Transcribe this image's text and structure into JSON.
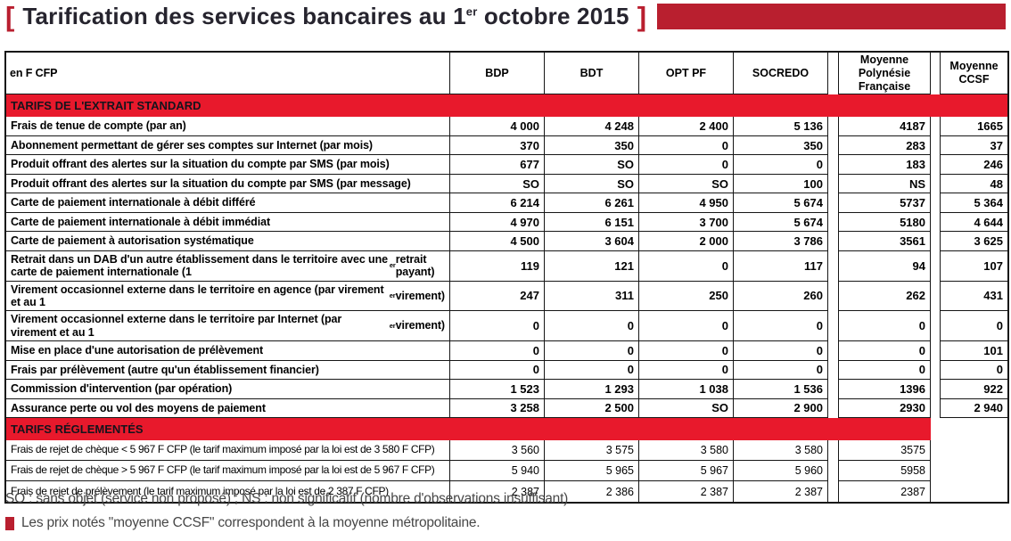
{
  "title": {
    "open_bracket": "[",
    "text": "Tarification des services bancaires au 1^{er} octobre 2015",
    "close_bracket": "]"
  },
  "colors": {
    "band_red": "#e8192c",
    "accent_dark_red": "#b91f2f",
    "border_black": "#161616",
    "title_text": "#26242e"
  },
  "table": {
    "unit_label": "en F CFP",
    "columns": [
      "BDP",
      "BDT",
      "OPT PF",
      "SOCREDO",
      "Moyenne Polynésie Française",
      "Moyenne CCSF"
    ],
    "sections": [
      {
        "header": "TARIFS DE L'EXTRAIT STANDARD",
        "full_width": true,
        "rows": [
          {
            "label": "Frais de tenue de compte (par an)",
            "values": [
              "4 000",
              "4 248",
              "2 400",
              "5 136",
              "4187",
              "1665"
            ]
          },
          {
            "label": "Abonnement permettant de gérer ses comptes sur Internet (par mois)",
            "values": [
              "370",
              "350",
              "0",
              "350",
              "283",
              "37"
            ]
          },
          {
            "label": "Produit offrant des alertes sur la situation du compte par SMS (par mois)",
            "values": [
              "677",
              "SO",
              "0",
              "0",
              "183",
              "246"
            ]
          },
          {
            "label": "Produit offrant des alertes sur la situation du compte par SMS (par message)",
            "values": [
              "SO",
              "SO",
              "SO",
              "100",
              "NS",
              "48"
            ]
          },
          {
            "label": "Carte de paiement internationale à débit différé",
            "values": [
              "6 214",
              "6 261",
              "4 950",
              "5 674",
              "5737",
              "5 364"
            ]
          },
          {
            "label": "Carte de paiement internationale à débit immédiat",
            "values": [
              "4 970",
              "6 151",
              "3 700",
              "5 674",
              "5180",
              "4 644"
            ]
          },
          {
            "label": "Carte de paiement à autorisation systématique",
            "values": [
              "4 500",
              "3 604",
              "2 000",
              "3 786",
              "3561",
              "3 625"
            ]
          },
          {
            "label": "Retrait dans un DAB d'un autre établissement dans le territoire avec une carte de paiement internationale (1^{er} retrait payant)",
            "values": [
              "119",
              "121",
              "0",
              "117",
              "94",
              "107"
            ]
          },
          {
            "label": "Virement occasionnel externe dans le territoire en agence (par virement et au 1^{er} virement)",
            "values": [
              "247",
              "311",
              "250",
              "260",
              "262",
              "431"
            ]
          },
          {
            "label": "Virement occasionnel externe dans le territoire par Internet (par virement et au 1^{er} virement)",
            "values": [
              "0",
              "0",
              "0",
              "0",
              "0",
              "0"
            ]
          },
          {
            "label": "Mise en place d'une autorisation de prélèvement",
            "values": [
              "0",
              "0",
              "0",
              "0",
              "0",
              "101"
            ]
          },
          {
            "label": "Frais par prélèvement (autre qu'un établissement financier)",
            "values": [
              "0",
              "0",
              "0",
              "0",
              "0",
              "0"
            ]
          },
          {
            "label": "Commission d'intervention (par opération)",
            "values": [
              "1 523",
              "1 293",
              "1 038",
              "1 536",
              "1396",
              "922"
            ]
          },
          {
            "label": "Assurance perte ou vol des moyens de paiement",
            "values": [
              "3 258",
              "2 500",
              "SO",
              "2 900",
              "2930",
              "2 940"
            ]
          }
        ]
      },
      {
        "header": "TARIFS RÉGLEMENTÉS",
        "full_width": false,
        "rows": [
          {
            "label": "Frais de rejet de chèque < 5 967 F CFP (le tarif maximum imposé par la loi est de 3 580 F CFP)",
            "values": [
              "3 560",
              "3 575",
              "3 580",
              "3 580",
              "3575",
              ""
            ]
          },
          {
            "label": "Frais de rejet de chèque > 5 967 F CFP (le tarif maximum imposé par la loi est de 5 967 F CFP)",
            "values": [
              "5 940",
              "5 965",
              "5 967",
              "5 960",
              "5958",
              ""
            ]
          },
          {
            "label": "Frais de rejet de prélèvement (le tarif maximum imposé par la loi est de 2 387 F CFP)",
            "values": [
              "2 387",
              "2 386",
              "2 387",
              "2 387",
              "2387",
              ""
            ]
          }
        ]
      }
    ]
  },
  "footnotes": {
    "abbreviations": "SO : sans objet (service non proposé) ; NS : non significatif (nombre d'observations insuffisant)",
    "ccsf_note": "Les prix notés \"moyenne CCSF\" correspondent à la moyenne métropolitaine."
  }
}
